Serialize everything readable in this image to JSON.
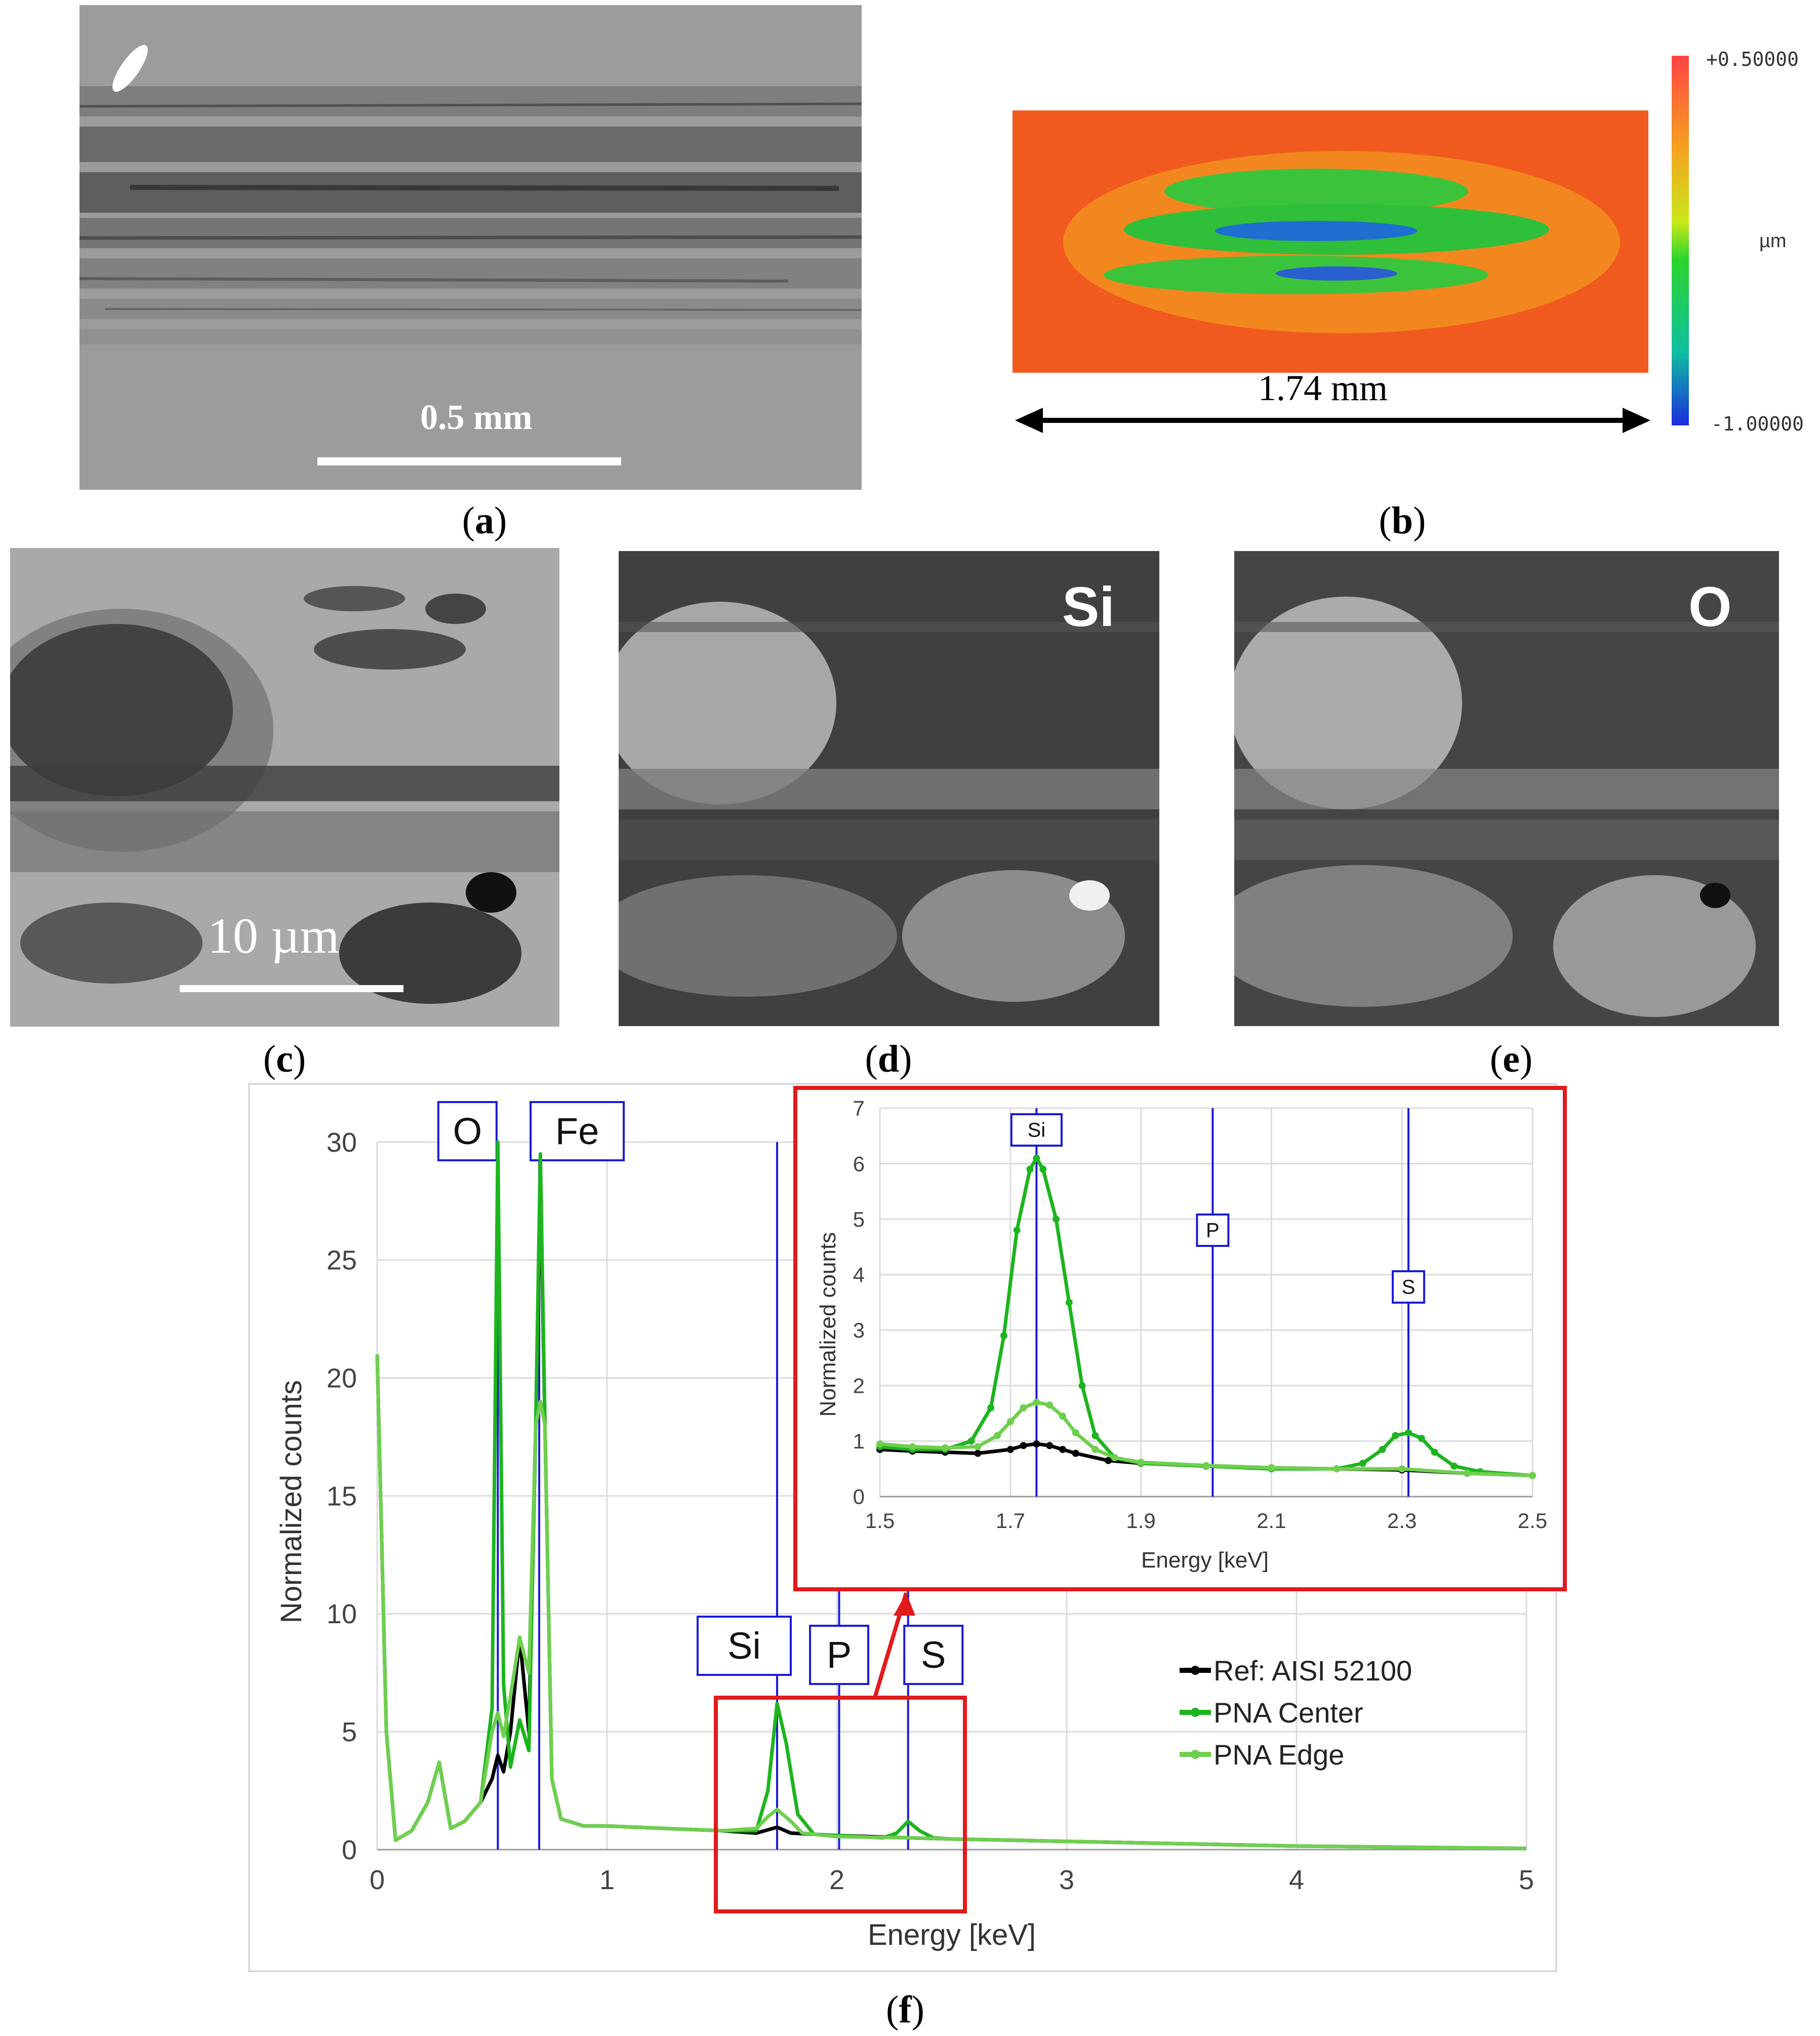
{
  "panels": {
    "a": {
      "scale_bar": "0.5 mm",
      "caption": "a"
    },
    "b": {
      "scale_max": "+0.50000",
      "scale_unit": "µm",
      "scale_min": "-1.00000",
      "dimension": "1.74 mm",
      "caption": "b"
    },
    "c": {
      "scale_bar": "10 µm",
      "caption": "c"
    },
    "d": {
      "element": "Si",
      "caption": "d"
    },
    "e": {
      "element": "O",
      "caption": "e"
    },
    "f": {
      "caption": "f"
    }
  },
  "chart_data": [
    {
      "type": "line",
      "xlabel": "Energy [keV]",
      "ylabel": "Normalized counts",
      "xlim": [
        0,
        5
      ],
      "ylim": [
        0,
        30
      ],
      "x_ticks": [
        0,
        1,
        2,
        3,
        4,
        5
      ],
      "y_ticks": [
        0,
        5,
        10,
        15,
        20,
        25,
        30
      ],
      "grid": true,
      "legend_position": "center-right",
      "element_markers": [
        {
          "label": "O",
          "energy": 0.525
        },
        {
          "label": "Fe",
          "energy": 0.705
        },
        {
          "label": "Si",
          "energy": 1.74
        },
        {
          "label": "P",
          "energy": 2.01
        },
        {
          "label": "S",
          "energy": 2.31
        }
      ],
      "series": [
        {
          "name": "Ref: AISI 52100",
          "color": "#000000",
          "x": [
            0,
            0.04,
            0.08,
            0.15,
            0.22,
            0.27,
            0.32,
            0.38,
            0.45,
            0.5,
            0.525,
            0.55,
            0.58,
            0.62,
            0.66,
            0.69,
            0.71,
            0.73,
            0.76,
            0.8,
            0.9,
            1.0,
            1.5,
            1.65,
            1.74,
            1.8,
            2.0,
            2.31,
            2.5,
            3.0,
            4.0,
            5.0
          ],
          "y": [
            21,
            5,
            0.4,
            0.8,
            2.0,
            3.7,
            0.9,
            1.2,
            2.0,
            3.0,
            4.0,
            3.3,
            5.0,
            9.0,
            5.0,
            18.0,
            28.5,
            18.0,
            3.0,
            1.3,
            1.0,
            1.0,
            0.8,
            0.7,
            0.95,
            0.7,
            0.6,
            0.5,
            0.45,
            0.35,
            0.15,
            0.05
          ]
        },
        {
          "name": "PNA Center",
          "color": "#1db51d",
          "x": [
            0,
            0.04,
            0.08,
            0.15,
            0.22,
            0.27,
            0.32,
            0.38,
            0.45,
            0.5,
            0.525,
            0.55,
            0.58,
            0.62,
            0.66,
            0.69,
            0.71,
            0.73,
            0.76,
            0.8,
            0.9,
            1.0,
            1.5,
            1.65,
            1.7,
            1.74,
            1.78,
            1.83,
            1.9,
            2.2,
            2.26,
            2.31,
            2.36,
            2.42,
            2.5,
            3.0,
            4.0,
            5.0
          ],
          "y": [
            21,
            5,
            0.4,
            0.8,
            2.0,
            3.7,
            0.9,
            1.2,
            2.0,
            6.0,
            30.0,
            7.0,
            3.5,
            5.5,
            4.2,
            18.0,
            29.5,
            18.0,
            3.0,
            1.3,
            1.0,
            1.0,
            0.8,
            0.8,
            2.5,
            6.2,
            4.5,
            1.5,
            0.65,
            0.5,
            0.7,
            1.2,
            0.8,
            0.5,
            0.45,
            0.35,
            0.15,
            0.05
          ]
        },
        {
          "name": "PNA Edge",
          "color": "#6fcf4f",
          "x": [
            0,
            0.04,
            0.08,
            0.15,
            0.22,
            0.27,
            0.32,
            0.38,
            0.45,
            0.5,
            0.525,
            0.55,
            0.58,
            0.62,
            0.66,
            0.69,
            0.71,
            0.73,
            0.76,
            0.8,
            0.9,
            1.0,
            1.5,
            1.65,
            1.7,
            1.74,
            1.8,
            1.85,
            2.0,
            2.31,
            2.5,
            3.0,
            4.0,
            5.0
          ],
          "y": [
            21,
            5,
            0.4,
            0.8,
            2.0,
            3.7,
            0.9,
            1.2,
            2.0,
            5.0,
            5.8,
            4.8,
            6.5,
            9.0,
            7.5,
            18.0,
            19.0,
            18.0,
            3.0,
            1.3,
            1.0,
            1.0,
            0.8,
            0.9,
            1.4,
            1.7,
            1.2,
            0.7,
            0.55,
            0.5,
            0.45,
            0.35,
            0.15,
            0.05
          ]
        }
      ]
    },
    {
      "type": "line",
      "xlabel": "Energy [keV]",
      "ylabel": "Normalized counts",
      "xlim": [
        1.5,
        2.5
      ],
      "ylim": [
        0,
        7
      ],
      "x_ticks": [
        1.5,
        1.7,
        1.9,
        2.1,
        2.3,
        2.5
      ],
      "y_ticks": [
        0,
        1,
        2,
        3,
        4,
        5,
        6,
        7
      ],
      "grid": true,
      "element_markers": [
        {
          "label": "Si",
          "energy": 1.74
        },
        {
          "label": "P",
          "energy": 2.01
        },
        {
          "label": "S",
          "energy": 2.31
        }
      ],
      "series": [
        {
          "name": "Ref: AISI 52100",
          "color": "#000000",
          "x": [
            1.5,
            1.55,
            1.6,
            1.65,
            1.7,
            1.72,
            1.74,
            1.76,
            1.78,
            1.8,
            1.85,
            1.9,
            2.0,
            2.1,
            2.2,
            2.3,
            2.4,
            2.5
          ],
          "y": [
            0.85,
            0.82,
            0.8,
            0.78,
            0.85,
            0.92,
            0.95,
            0.92,
            0.85,
            0.78,
            0.65,
            0.6,
            0.55,
            0.52,
            0.5,
            0.48,
            0.42,
            0.38
          ]
        },
        {
          "name": "PNA Center",
          "color": "#1db51d",
          "x": [
            1.5,
            1.55,
            1.6,
            1.64,
            1.67,
            1.69,
            1.71,
            1.73,
            1.74,
            1.75,
            1.77,
            1.79,
            1.81,
            1.83,
            1.86,
            1.9,
            2.0,
            2.1,
            2.2,
            2.24,
            2.27,
            2.29,
            2.31,
            2.33,
            2.35,
            2.38,
            2.42,
            2.5
          ],
          "y": [
            0.9,
            0.85,
            0.85,
            1.0,
            1.6,
            2.9,
            4.8,
            5.9,
            6.1,
            5.9,
            5.0,
            3.5,
            2.0,
            1.1,
            0.7,
            0.6,
            0.55,
            0.5,
            0.5,
            0.6,
            0.85,
            1.1,
            1.15,
            1.05,
            0.8,
            0.55,
            0.45,
            0.38
          ]
        },
        {
          "name": "PNA Edge",
          "color": "#6fcf4f",
          "x": [
            1.5,
            1.55,
            1.6,
            1.65,
            1.68,
            1.7,
            1.72,
            1.74,
            1.76,
            1.78,
            1.8,
            1.83,
            1.86,
            1.9,
            2.0,
            2.1,
            2.2,
            2.3,
            2.4,
            2.5
          ],
          "y": [
            0.95,
            0.9,
            0.88,
            0.9,
            1.1,
            1.35,
            1.6,
            1.7,
            1.65,
            1.45,
            1.15,
            0.85,
            0.7,
            0.62,
            0.56,
            0.52,
            0.5,
            0.5,
            0.42,
            0.38
          ]
        }
      ]
    }
  ]
}
